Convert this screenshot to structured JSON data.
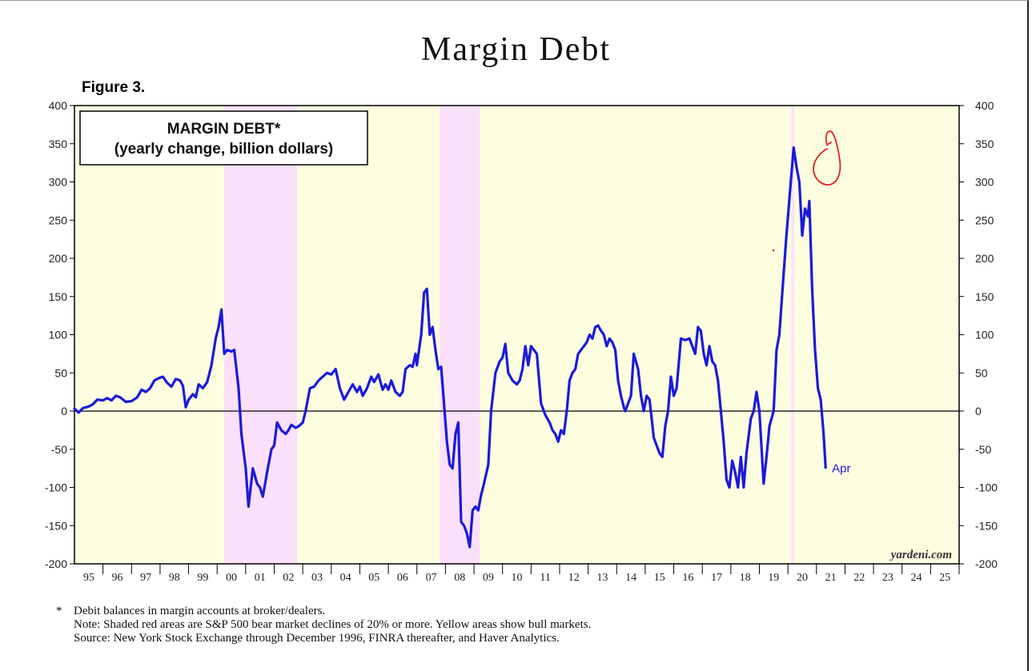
{
  "page": {
    "title": "Margin Debt",
    "figure_label": "Figure 3."
  },
  "chart_data": {
    "type": "line",
    "title": "MARGIN DEBT*",
    "subtitle": "(yearly change, billion dollars)",
    "ylim": [
      -200,
      400
    ],
    "yticks": [
      400,
      350,
      300,
      250,
      200,
      150,
      100,
      50,
      0,
      -50,
      -100,
      -150,
      -200
    ],
    "ytick_labels": [
      "400",
      "350",
      "300",
      "250",
      "200",
      "150",
      "100",
      "50",
      "0",
      "-50",
      "-100",
      "-150",
      "-200"
    ],
    "xlim": [
      1995,
      2026
    ],
    "year_labels": [
      "95",
      "96",
      "97",
      "98",
      "99",
      "00",
      "01",
      "02",
      "03",
      "04",
      "05",
      "06",
      "07",
      "08",
      "09",
      "10",
      "11",
      "12",
      "13",
      "14",
      "15",
      "16",
      "17",
      "18",
      "19",
      "20",
      "21",
      "22",
      "23",
      "24",
      "25"
    ],
    "bear_markets": [
      [
        2000.25,
        2002.8
      ],
      [
        2007.8,
        2009.2
      ],
      [
        2020.12,
        2020.22
      ]
    ],
    "line_color": "#1a1adb",
    "bull_color": "#fdfde0",
    "bear_color": "#fbe0fb",
    "end_label": "Apr",
    "source_label": "yardeni.com",
    "grid": false,
    "series": [
      {
        "name": "",
        "points": [
          [
            1995.0,
            3
          ],
          [
            1995.15,
            -2
          ],
          [
            1995.3,
            4
          ],
          [
            1995.5,
            6
          ],
          [
            1995.65,
            9
          ],
          [
            1995.8,
            15
          ],
          [
            1996.0,
            14
          ],
          [
            1996.15,
            17
          ],
          [
            1996.3,
            14
          ],
          [
            1996.45,
            20
          ],
          [
            1996.6,
            18
          ],
          [
            1996.8,
            12
          ],
          [
            1997.0,
            13
          ],
          [
            1997.2,
            18
          ],
          [
            1997.35,
            28
          ],
          [
            1997.5,
            25
          ],
          [
            1997.65,
            30
          ],
          [
            1997.8,
            40
          ],
          [
            1997.95,
            43
          ],
          [
            1998.1,
            45
          ],
          [
            1998.25,
            37
          ],
          [
            1998.4,
            32
          ],
          [
            1998.55,
            42
          ],
          [
            1998.7,
            40
          ],
          [
            1998.8,
            33
          ],
          [
            1998.9,
            5
          ],
          [
            1999.0,
            15
          ],
          [
            1999.15,
            22
          ],
          [
            1999.25,
            18
          ],
          [
            1999.35,
            35
          ],
          [
            1999.5,
            30
          ],
          [
            1999.65,
            38
          ],
          [
            1999.8,
            60
          ],
          [
            1999.95,
            95
          ],
          [
            2000.05,
            110
          ],
          [
            2000.15,
            133
          ],
          [
            2000.25,
            75
          ],
          [
            2000.35,
            80
          ],
          [
            2000.5,
            78
          ],
          [
            2000.6,
            80
          ],
          [
            2000.75,
            30
          ],
          [
            2000.85,
            -30
          ],
          [
            2001.0,
            -75
          ],
          [
            2001.1,
            -125
          ],
          [
            2001.25,
            -75
          ],
          [
            2001.4,
            -95
          ],
          [
            2001.5,
            -100
          ],
          [
            2001.6,
            -112
          ],
          [
            2001.75,
            -80
          ],
          [
            2001.9,
            -50
          ],
          [
            2002.0,
            -45
          ],
          [
            2002.1,
            -15
          ],
          [
            2002.25,
            -25
          ],
          [
            2002.4,
            -30
          ],
          [
            2002.5,
            -25
          ],
          [
            2002.6,
            -18
          ],
          [
            2002.75,
            -22
          ],
          [
            2002.85,
            -20
          ],
          [
            2003.0,
            -15
          ],
          [
            2003.1,
            0
          ],
          [
            2003.25,
            30
          ],
          [
            2003.4,
            32
          ],
          [
            2003.55,
            40
          ],
          [
            2003.7,
            45
          ],
          [
            2003.85,
            50
          ],
          [
            2004.0,
            48
          ],
          [
            2004.15,
            55
          ],
          [
            2004.3,
            30
          ],
          [
            2004.45,
            15
          ],
          [
            2004.6,
            25
          ],
          [
            2004.75,
            35
          ],
          [
            2004.9,
            25
          ],
          [
            2005.0,
            32
          ],
          [
            2005.1,
            20
          ],
          [
            2005.25,
            30
          ],
          [
            2005.4,
            45
          ],
          [
            2005.5,
            38
          ],
          [
            2005.65,
            48
          ],
          [
            2005.8,
            28
          ],
          [
            2005.9,
            35
          ],
          [
            2006.0,
            28
          ],
          [
            2006.1,
            40
          ],
          [
            2006.25,
            25
          ],
          [
            2006.4,
            20
          ],
          [
            2006.5,
            25
          ],
          [
            2006.6,
            55
          ],
          [
            2006.75,
            60
          ],
          [
            2006.85,
            58
          ],
          [
            2006.95,
            75
          ],
          [
            2007.0,
            60
          ],
          [
            2007.15,
            100
          ],
          [
            2007.25,
            155
          ],
          [
            2007.35,
            160
          ],
          [
            2007.45,
            100
          ],
          [
            2007.55,
            110
          ],
          [
            2007.65,
            80
          ],
          [
            2007.75,
            55
          ],
          [
            2007.85,
            58
          ],
          [
            2007.95,
            10
          ],
          [
            2008.05,
            -40
          ],
          [
            2008.15,
            -70
          ],
          [
            2008.25,
            -75
          ],
          [
            2008.35,
            -30
          ],
          [
            2008.45,
            -15
          ],
          [
            2008.55,
            -145
          ],
          [
            2008.65,
            -150
          ],
          [
            2008.75,
            -160
          ],
          [
            2008.85,
            -178
          ],
          [
            2008.95,
            -130
          ],
          [
            2009.05,
            -125
          ],
          [
            2009.15,
            -130
          ],
          [
            2009.25,
            -110
          ],
          [
            2009.35,
            -95
          ],
          [
            2009.5,
            -70
          ],
          [
            2009.6,
            0
          ],
          [
            2009.75,
            50
          ],
          [
            2009.9,
            65
          ],
          [
            2010.0,
            70
          ],
          [
            2010.1,
            88
          ],
          [
            2010.2,
            50
          ],
          [
            2010.35,
            40
          ],
          [
            2010.5,
            35
          ],
          [
            2010.6,
            40
          ],
          [
            2010.7,
            55
          ],
          [
            2010.8,
            85
          ],
          [
            2010.9,
            60
          ],
          [
            2011.0,
            85
          ],
          [
            2011.1,
            80
          ],
          [
            2011.2,
            75
          ],
          [
            2011.35,
            10
          ],
          [
            2011.5,
            -5
          ],
          [
            2011.65,
            -15
          ],
          [
            2011.75,
            -25
          ],
          [
            2011.85,
            -30
          ],
          [
            2011.95,
            -40
          ],
          [
            2012.05,
            -25
          ],
          [
            2012.15,
            -30
          ],
          [
            2012.25,
            0
          ],
          [
            2012.35,
            40
          ],
          [
            2012.45,
            50
          ],
          [
            2012.55,
            55
          ],
          [
            2012.65,
            75
          ],
          [
            2012.75,
            80
          ],
          [
            2012.85,
            85
          ],
          [
            2012.95,
            90
          ],
          [
            2013.05,
            100
          ],
          [
            2013.15,
            95
          ],
          [
            2013.25,
            110
          ],
          [
            2013.35,
            112
          ],
          [
            2013.45,
            105
          ],
          [
            2013.55,
            100
          ],
          [
            2013.65,
            85
          ],
          [
            2013.75,
            95
          ],
          [
            2013.85,
            90
          ],
          [
            2013.95,
            80
          ],
          [
            2014.05,
            40
          ],
          [
            2014.15,
            20
          ],
          [
            2014.25,
            5
          ],
          [
            2014.3,
            0
          ],
          [
            2014.4,
            10
          ],
          [
            2014.5,
            20
          ],
          [
            2014.6,
            75
          ],
          [
            2014.75,
            55
          ],
          [
            2014.85,
            20
          ],
          [
            2014.95,
            0
          ],
          [
            2015.05,
            20
          ],
          [
            2015.15,
            15
          ],
          [
            2015.3,
            -35
          ],
          [
            2015.4,
            -45
          ],
          [
            2015.5,
            -55
          ],
          [
            2015.6,
            -60
          ],
          [
            2015.7,
            -20
          ],
          [
            2015.8,
            0
          ],
          [
            2015.9,
            45
          ],
          [
            2016.0,
            20
          ],
          [
            2016.1,
            30
          ],
          [
            2016.25,
            95
          ],
          [
            2016.4,
            93
          ],
          [
            2016.55,
            95
          ],
          [
            2016.65,
            85
          ],
          [
            2016.75,
            75
          ],
          [
            2016.85,
            110
          ],
          [
            2016.95,
            105
          ],
          [
            2017.05,
            75
          ],
          [
            2017.15,
            60
          ],
          [
            2017.25,
            85
          ],
          [
            2017.35,
            65
          ],
          [
            2017.45,
            60
          ],
          [
            2017.55,
            40
          ],
          [
            2017.65,
            0
          ],
          [
            2017.75,
            -40
          ],
          [
            2017.85,
            -90
          ],
          [
            2017.95,
            -100
          ],
          [
            2018.05,
            -65
          ],
          [
            2018.15,
            -80
          ],
          [
            2018.25,
            -100
          ],
          [
            2018.35,
            -60
          ],
          [
            2018.45,
            -100
          ],
          [
            2018.55,
            -55
          ],
          [
            2018.7,
            -10
          ],
          [
            2018.8,
            0
          ],
          [
            2018.9,
            25
          ],
          [
            2019.0,
            0
          ],
          [
            2019.15,
            -95
          ],
          [
            2019.25,
            -60
          ],
          [
            2019.35,
            -20
          ],
          [
            2019.5,
            0
          ],
          [
            2019.6,
            80
          ],
          [
            2019.7,
            100
          ],
          [
            2019.85,
            180
          ],
          [
            2019.95,
            230
          ],
          [
            2020.1,
            300
          ],
          [
            2020.2,
            345
          ],
          [
            2020.3,
            320
          ],
          [
            2020.4,
            300
          ],
          [
            2020.5,
            230
          ],
          [
            2020.6,
            265
          ],
          [
            2020.7,
            255
          ],
          [
            2020.75,
            275
          ],
          [
            2020.85,
            160
          ],
          [
            2020.95,
            80
          ],
          [
            2021.05,
            30
          ],
          [
            2021.15,
            15
          ],
          [
            2021.25,
            -30
          ],
          [
            2021.32,
            -74
          ]
        ]
      }
    ]
  },
  "footnotes": {
    "star": "*",
    "line1": "Debit balances in margin accounts at broker/dealers.",
    "line2": "Note: Shaded red areas are S&P 500 bear market declines of 20% or more. Yellow areas show bull markets.",
    "line3": "Source: New York Stock Exchange through December 1996, FINRA thereafter, and Haver Analytics."
  },
  "annotation": {
    "color": "#e02020"
  }
}
